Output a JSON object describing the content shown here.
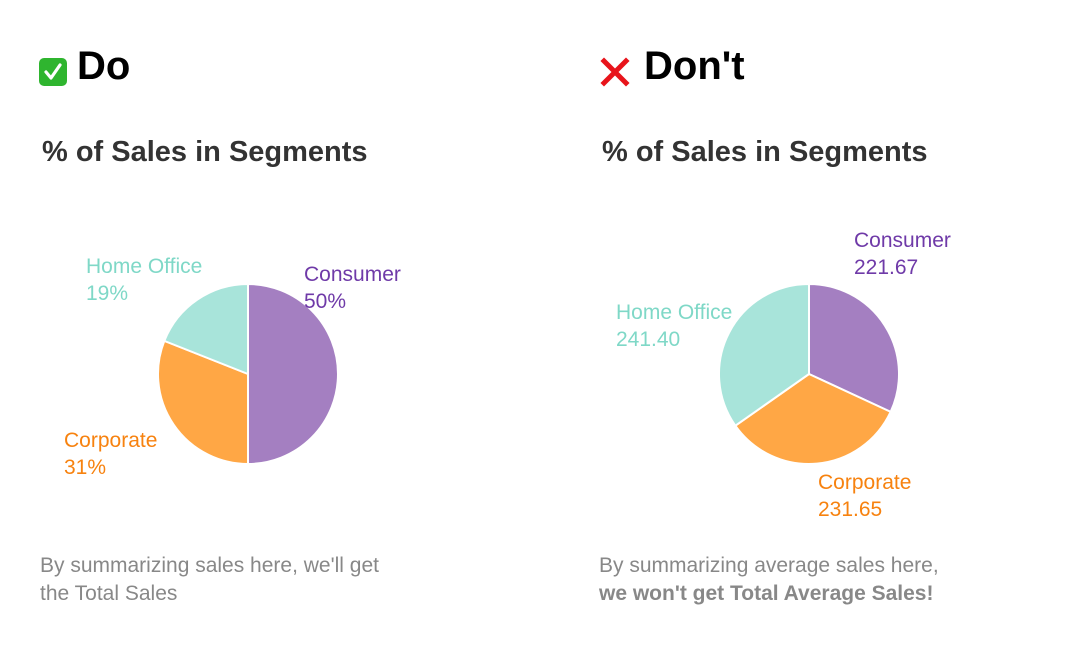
{
  "panels": [
    {
      "heading": "Do",
      "icon": "check-mark-icon",
      "title": "% of Sales in Segments",
      "note_line1": "By summarizing sales here, we'll get",
      "note_line2": "the Total Sales",
      "labels": [
        {
          "name": "Consumer",
          "value": "50%",
          "color": "#6f3aa8"
        },
        {
          "name": "Corporate",
          "value": "31%",
          "color": "#f7820f"
        },
        {
          "name": "Home Office",
          "value": "19%",
          "color": "#7fd8c7"
        }
      ]
    },
    {
      "heading": "Don't",
      "icon": "cross-mark-icon",
      "title": "% of Sales in Segments",
      "note_line1": "By summarizing average sales here,",
      "note_line2": "we won't get Total Average Sales!",
      "labels": [
        {
          "name": "Consumer",
          "value": "221.67",
          "color": "#6f3aa8"
        },
        {
          "name": "Corporate",
          "value": "231.65",
          "color": "#f7820f"
        },
        {
          "name": "Home Office",
          "value": "241.40",
          "color": "#7fd8c7"
        }
      ]
    }
  ],
  "chart_data": [
    {
      "type": "pie",
      "title": "% of Sales in Segments",
      "categories": [
        "Consumer",
        "Corporate",
        "Home Office"
      ],
      "values": [
        50,
        31,
        19
      ],
      "value_format": "percent",
      "colors": [
        "#a47fc1",
        "#ffa745",
        "#a8e4da"
      ]
    },
    {
      "type": "pie",
      "title": "% of Sales in Segments",
      "categories": [
        "Consumer",
        "Corporate",
        "Home Office"
      ],
      "values": [
        221.67,
        231.65,
        241.4
      ],
      "value_format": "average",
      "colors": [
        "#a47fc1",
        "#ffa745",
        "#a8e4da"
      ]
    }
  ]
}
